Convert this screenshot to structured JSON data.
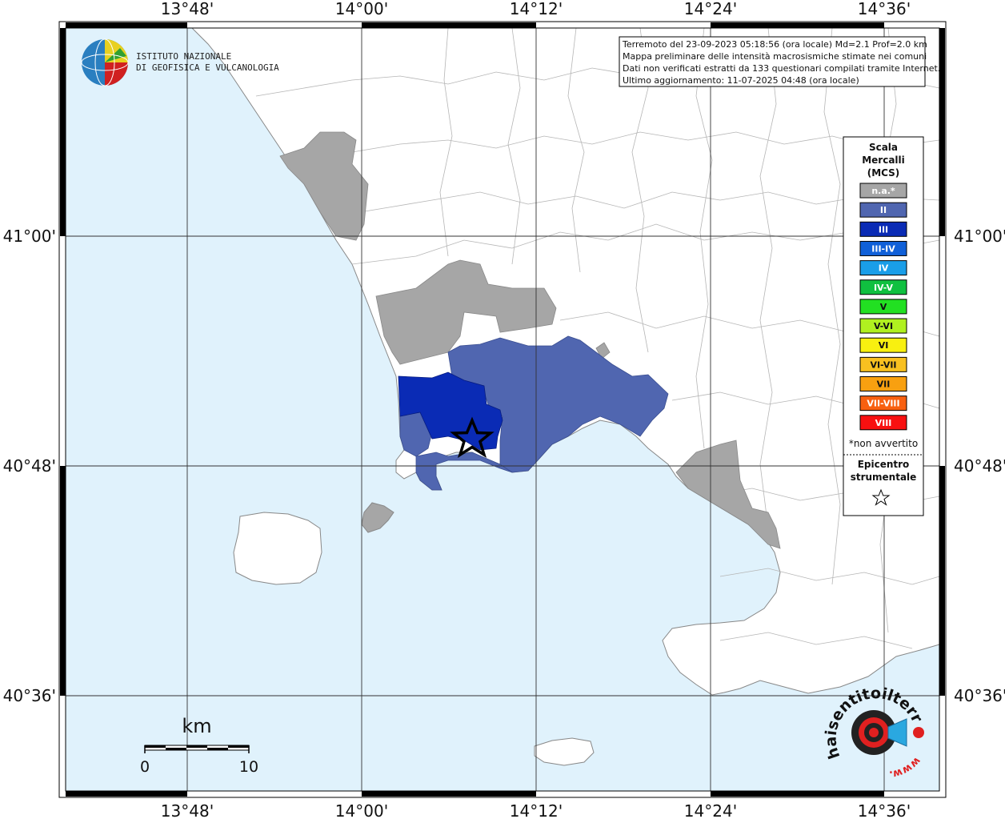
{
  "lon_labels": [
    "13°48'",
    "14°00'",
    "14°12'",
    "14°24'",
    "14°36'"
  ],
  "lat_labels": [
    "41°00'",
    "40°48'",
    "40°36'"
  ],
  "institute": {
    "line1": "ISTITUTO NAZIONALE",
    "line2": "DI GEOFISICA E VULCANOLOGIA"
  },
  "info": [
    "Terremoto del 23-09-2023 05:18:56 (ora locale) Md=2.1 Prof=2.0 km",
    "Mappa preliminare delle intensità macrosismiche stimate nei comuni",
    "Dati non verificati estratti da 133 questionari compilati tramite Internet.",
    "Ultimo aggiornamento: 11-07-2025 04:48 (ora locale)"
  ],
  "legend": {
    "title": [
      "Scala",
      "Mercalli",
      "(MCS)"
    ],
    "items": [
      {
        "label": "n.a.*",
        "color": "#a6a6a6",
        "text_color": "#ffffff"
      },
      {
        "label": "II",
        "color": "#5066b0",
        "text_color": "#ffffff"
      },
      {
        "label": "III",
        "color": "#0a2bb5",
        "text_color": "#ffffff"
      },
      {
        "label": "III-IV",
        "color": "#1060d8",
        "text_color": "#ffffff"
      },
      {
        "label": "IV",
        "color": "#1a9ee8",
        "text_color": "#ffffff"
      },
      {
        "label": "IV-V",
        "color": "#10c040",
        "text_color": "#ffffff"
      },
      {
        "label": "V",
        "color": "#22e022",
        "text_color": "#111111"
      },
      {
        "label": "V-VI",
        "color": "#b0f020",
        "text_color": "#111111"
      },
      {
        "label": "VI",
        "color": "#f8f010",
        "text_color": "#111111"
      },
      {
        "label": "VI-VII",
        "color": "#f8c020",
        "text_color": "#111111"
      },
      {
        "label": "VII",
        "color": "#f8a010",
        "text_color": "#111111"
      },
      {
        "label": "VII-VIII",
        "color": "#f86010",
        "text_color": "#ffffff"
      },
      {
        "label": "VIII",
        "color": "#f81010",
        "text_color": "#ffffff"
      }
    ],
    "note": "*non avvertito",
    "epicenter_title": [
      "Epicentro",
      "strumentale"
    ]
  },
  "scale": {
    "unit": "km",
    "min": "0",
    "max": "10"
  },
  "brand": {
    "text": "haisentitoilterremoto.it",
    "www": "www."
  },
  "colors": {
    "sea": "#e0f2fc",
    "land": "#ffffff",
    "border": "#999999"
  }
}
